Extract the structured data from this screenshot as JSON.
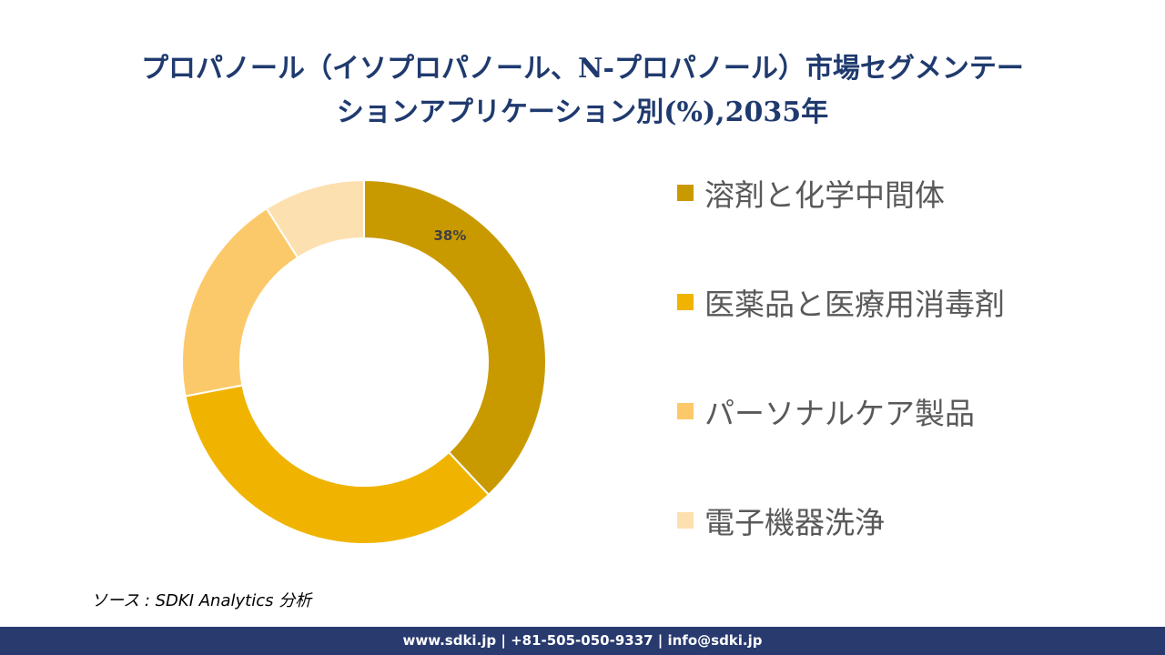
{
  "title": {
    "line1": "プロパノール（イソプロパノール、N-プロパノール）市場セグメンテー",
    "line2": "ションアプリケーション別(%),2035年"
  },
  "chart_data": {
    "type": "pie",
    "title": "プロパノール（イソプロパノール、N-プロパノール）市場セグメンテーションアプリケーション別(%),2035年",
    "categories": [
      "溶剤と化学中間体",
      "医薬品と医療用消毒剤",
      "パーソナルケア製品",
      "電子機器洗浄"
    ],
    "values": [
      38,
      34,
      19,
      9
    ],
    "colors": [
      "#c99a00",
      "#f0b400",
      "#fcc96a",
      "#fde0b0"
    ],
    "data_labels": [
      "38%",
      "",
      "",
      ""
    ],
    "legend_position": "right"
  },
  "source": "ソース : SDKI Analytics 分析",
  "footer": "www.sdki.jp | +81-505-050-9337 | info@sdki.jp"
}
